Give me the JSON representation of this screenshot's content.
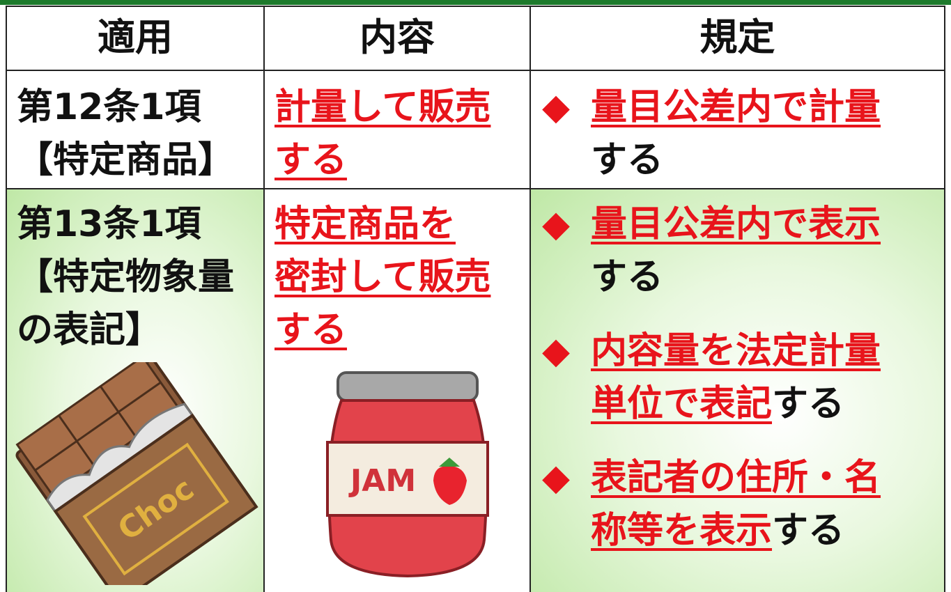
{
  "header": [
    "適用",
    "内容",
    "規定"
  ],
  "rows": [
    {
      "article": [
        "第12条1項",
        "【特定商品】"
      ],
      "content": [
        "計量して販売",
        "する"
      ],
      "rules": [
        {
          "marker": "◆",
          "lines": [
            [
              {
                "text": "量目公差内で計量",
                "emphasis": true
              }
            ],
            [
              {
                "text": "する",
                "emphasis": false
              }
            ]
          ]
        }
      ]
    },
    {
      "article": [
        "第13条1項",
        "【特定物象量",
        "の表記】"
      ],
      "content": [
        "特定商品を",
        "密封して販売",
        "する"
      ],
      "rules": [
        {
          "marker": "◆",
          "lines": [
            [
              {
                "text": "量目公差内で表示",
                "emphasis": true
              }
            ],
            [
              {
                "text": "する",
                "emphasis": false
              }
            ]
          ]
        },
        {
          "marker": "◆",
          "lines": [
            [
              {
                "text": "内容量を法定計量",
                "emphasis": true
              }
            ],
            [
              {
                "text": "単位で表記",
                "emphasis": true
              },
              {
                "text": "する",
                "emphasis": false
              }
            ]
          ]
        },
        {
          "marker": "◆",
          "lines": [
            [
              {
                "text": "表記者の住所・名",
                "emphasis": true
              }
            ],
            [
              {
                "text": "称等を表示",
                "emphasis": true
              },
              {
                "text": "する",
                "emphasis": false
              }
            ]
          ]
        }
      ]
    }
  ],
  "illustrations": {
    "chocolate_label": "Choc",
    "jam_label": "JAM"
  }
}
